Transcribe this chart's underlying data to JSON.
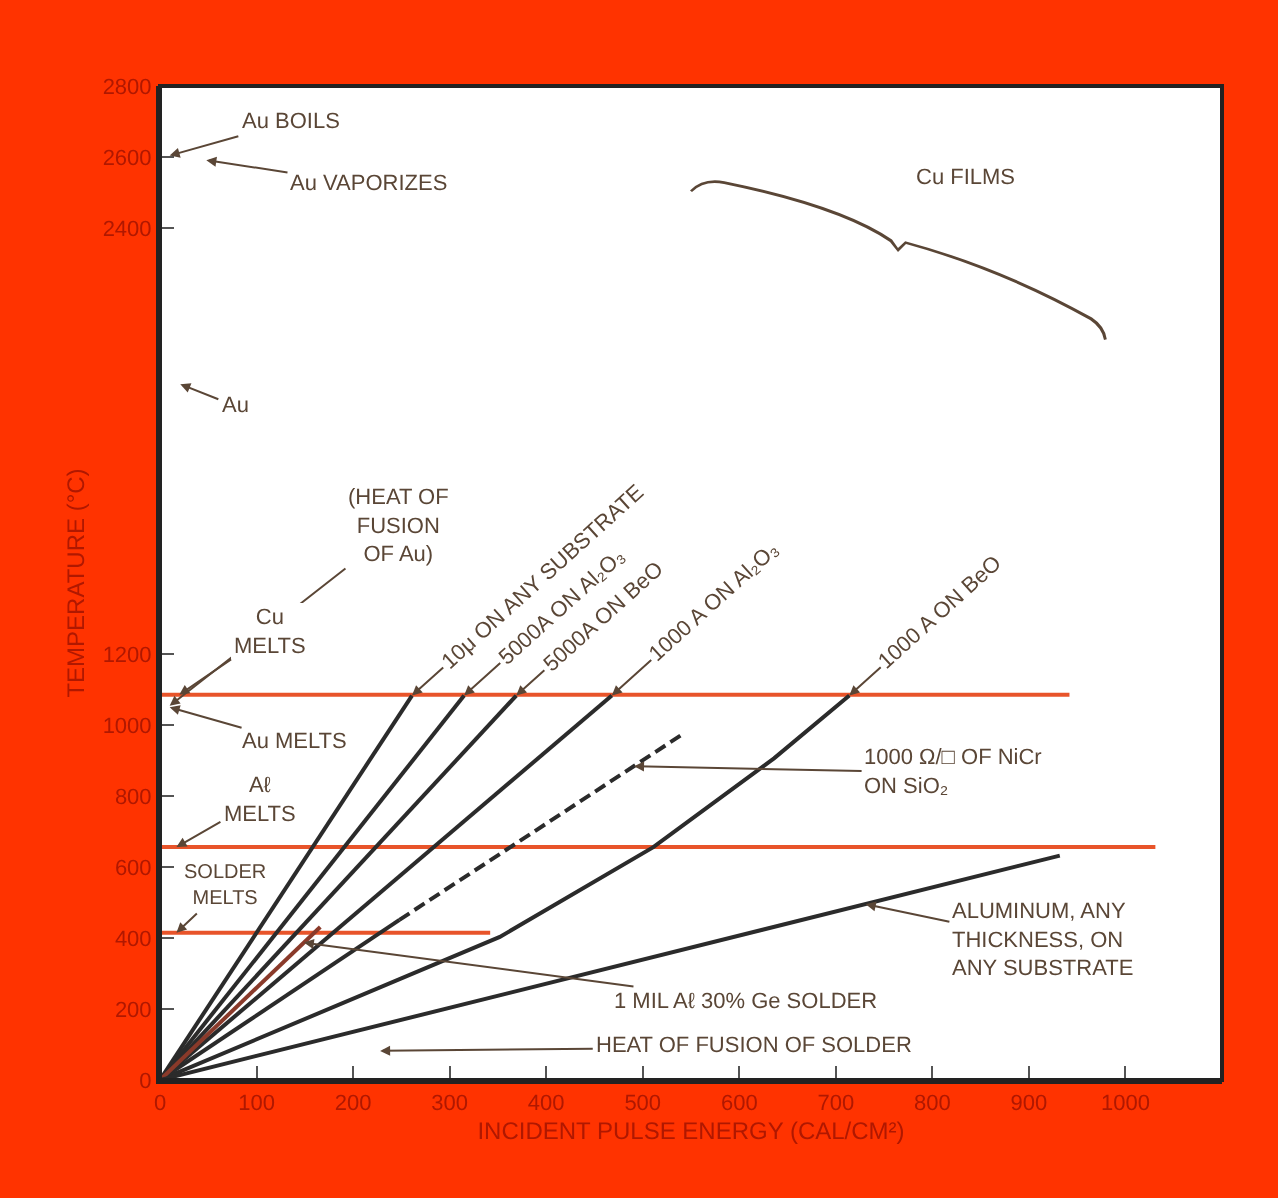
{
  "chart_data": {
    "type": "line",
    "xlabel": "INCIDENT PULSE ENERGY (CAL/CM²)",
    "ylabel": "TEMPERATURE (°C)",
    "xlim": [
      0,
      1100
    ],
    "xticks": [
      0,
      100,
      200,
      300,
      400,
      500,
      600,
      700,
      800,
      900,
      1000
    ],
    "ylim": [
      0,
      2800
    ],
    "yticks": [
      0,
      200,
      400,
      600,
      800,
      1000,
      1200,
      2400,
      2600,
      2800
    ],
    "grid": false,
    "series": [
      {
        "color": "#e8542a",
        "x": [
          0,
          942
        ],
        "values": [
          1085,
          1085
        ]
      },
      {
        "color": "#e8542a",
        "x": [
          0,
          1031
        ],
        "values": [
          656,
          656
        ]
      },
      {
        "color": "#e8542a",
        "x": [
          0,
          342
        ],
        "values": [
          415,
          415
        ]
      },
      {
        "color": "#2b2b2b",
        "x": [
          0,
          261
        ],
        "values": [
          0,
          1083
        ]
      },
      {
        "color": "#2b2b2b",
        "x": [
          0,
          315
        ],
        "values": [
          0,
          1083
        ]
      },
      {
        "color": "#2b2b2b",
        "x": [
          0,
          369
        ],
        "values": [
          0,
          1083
        ]
      },
      {
        "color": "#2b2b2b",
        "x": [
          0,
          468
        ],
        "values": [
          0,
          1083
        ]
      },
      {
        "color": "#2b2b2b",
        "x": [
          0,
          352,
          511,
          636,
          714
        ],
        "values": [
          0,
          403,
          656,
          906,
          1083
        ]
      },
      {
        "color": "#2b2b2b",
        "x": [
          0,
          248
        ],
        "values": [
          0,
          451
        ]
      },
      {
        "color": "#2b2b2b",
        "line_style": "dashed",
        "x": [
          248,
          544
        ],
        "values": [
          451,
          979
        ]
      },
      {
        "color": "#8a3a2a",
        "x": [
          0,
          166
        ],
        "values": [
          0,
          431
        ]
      },
      {
        "color": "#2b2b2b",
        "x": [
          0,
          932
        ],
        "values": [
          0,
          632
        ]
      }
    ],
    "annotations": [
      "Au BOILS",
      "Au VAPORIZES",
      "Au",
      "(HEAT OF\nFUSION\nOF Au)",
      {
        "text": "Cu\nMELTS",
        "x": 20,
        "y": 1085
      },
      "Au MELTS",
      {
        "text": "Aℓ\nMELTS",
        "x": 17,
        "y": 656
      },
      {
        "text": "SOLDER\nMELTS",
        "x": 17,
        "y": 415
      },
      {
        "text": "1 MIL Aℓ 30% Ge SOLDER",
        "x": 149,
        "y": 387
      },
      "HEAT OF FUSION OF SOLDER",
      "Cu FILMS",
      {
        "text": "10μ ON ANY SUBSTRATE",
        "x": 261,
        "y": 1083
      },
      {
        "text": "5000A ON Al₂O₃",
        "x": 315,
        "y": 1083
      },
      {
        "text": "5000A ON BeO",
        "x": 369,
        "y": 1083
      },
      {
        "text": "1000 A ON Al₂O₃",
        "x": 468,
        "y": 1083
      },
      {
        "text": "1000 A ON BeO",
        "x": 714,
        "y": 1083
      },
      {
        "text": "1000 Ω/□ OF NiCr\nON SiO₂",
        "x": 491,
        "y": 884
      },
      {
        "text": "ALUMINUM, ANY\nTHICKNESS, ON\nANY SUBSTRATE",
        "x": 731,
        "y": 495
      }
    ]
  }
}
